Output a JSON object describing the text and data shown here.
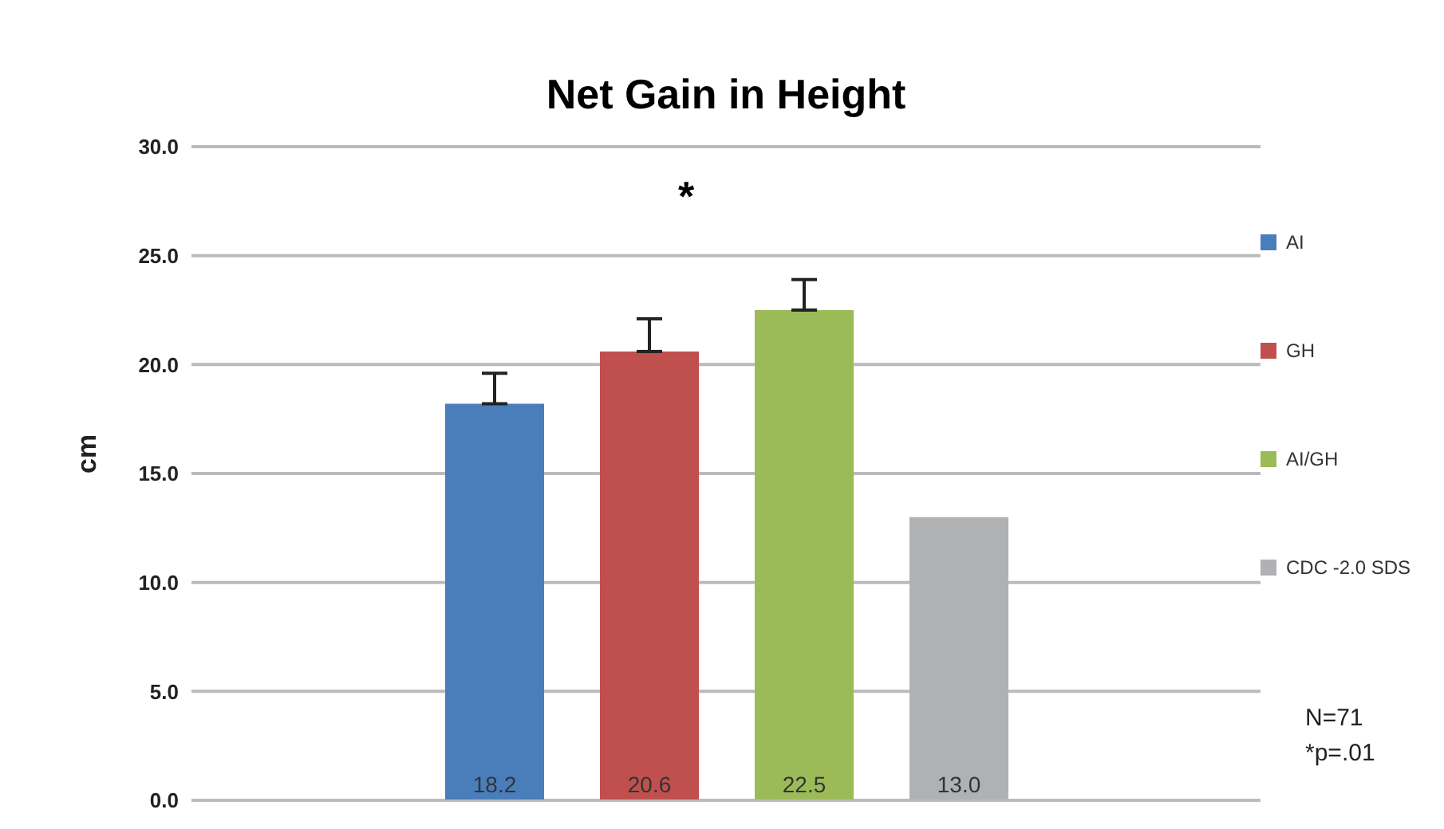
{
  "chart_data": {
    "type": "bar",
    "title": "Net Gain in Height",
    "ylabel": "cm",
    "categories": [
      null
    ],
    "series": [
      {
        "name": "AI",
        "color": "#4a7ebb",
        "values": [
          18.2
        ],
        "value_labels": [
          "18.2"
        ],
        "errors": [
          [
            18.2,
            19.6
          ]
        ]
      },
      {
        "name": "GH",
        "color": "#c0504d",
        "values": [
          20.6
        ],
        "value_labels": [
          "20.6"
        ],
        "errors": [
          [
            20.6,
            22.1
          ]
        ]
      },
      {
        "name": "AI/GH",
        "color": "#9bbb59",
        "values": [
          22.5
        ],
        "value_labels": [
          "22.5"
        ],
        "errors": [
          [
            22.5,
            23.9
          ]
        ]
      },
      {
        "name": "CDC -2.0 SDS",
        "color": "#b0b1b3",
        "values": [
          13.0
        ],
        "value_labels": [
          "13.0"
        ]
      }
    ],
    "ylim": [
      0,
      30
    ],
    "yticks": [
      {
        "value": 0,
        "label": "0.0"
      },
      {
        "value": 5,
        "label": "5.0"
      },
      {
        "value": 10,
        "label": "10.0"
      },
      {
        "value": 15,
        "label": "15.0"
      },
      {
        "value": 20,
        "label": "20.0"
      },
      {
        "value": 25,
        "label": "25.0"
      },
      {
        "value": 30,
        "label": "30.0"
      }
    ],
    "grid": "y",
    "legend": "right",
    "annotations": [
      "*",
      "N=71",
      "*p=.01"
    ]
  }
}
